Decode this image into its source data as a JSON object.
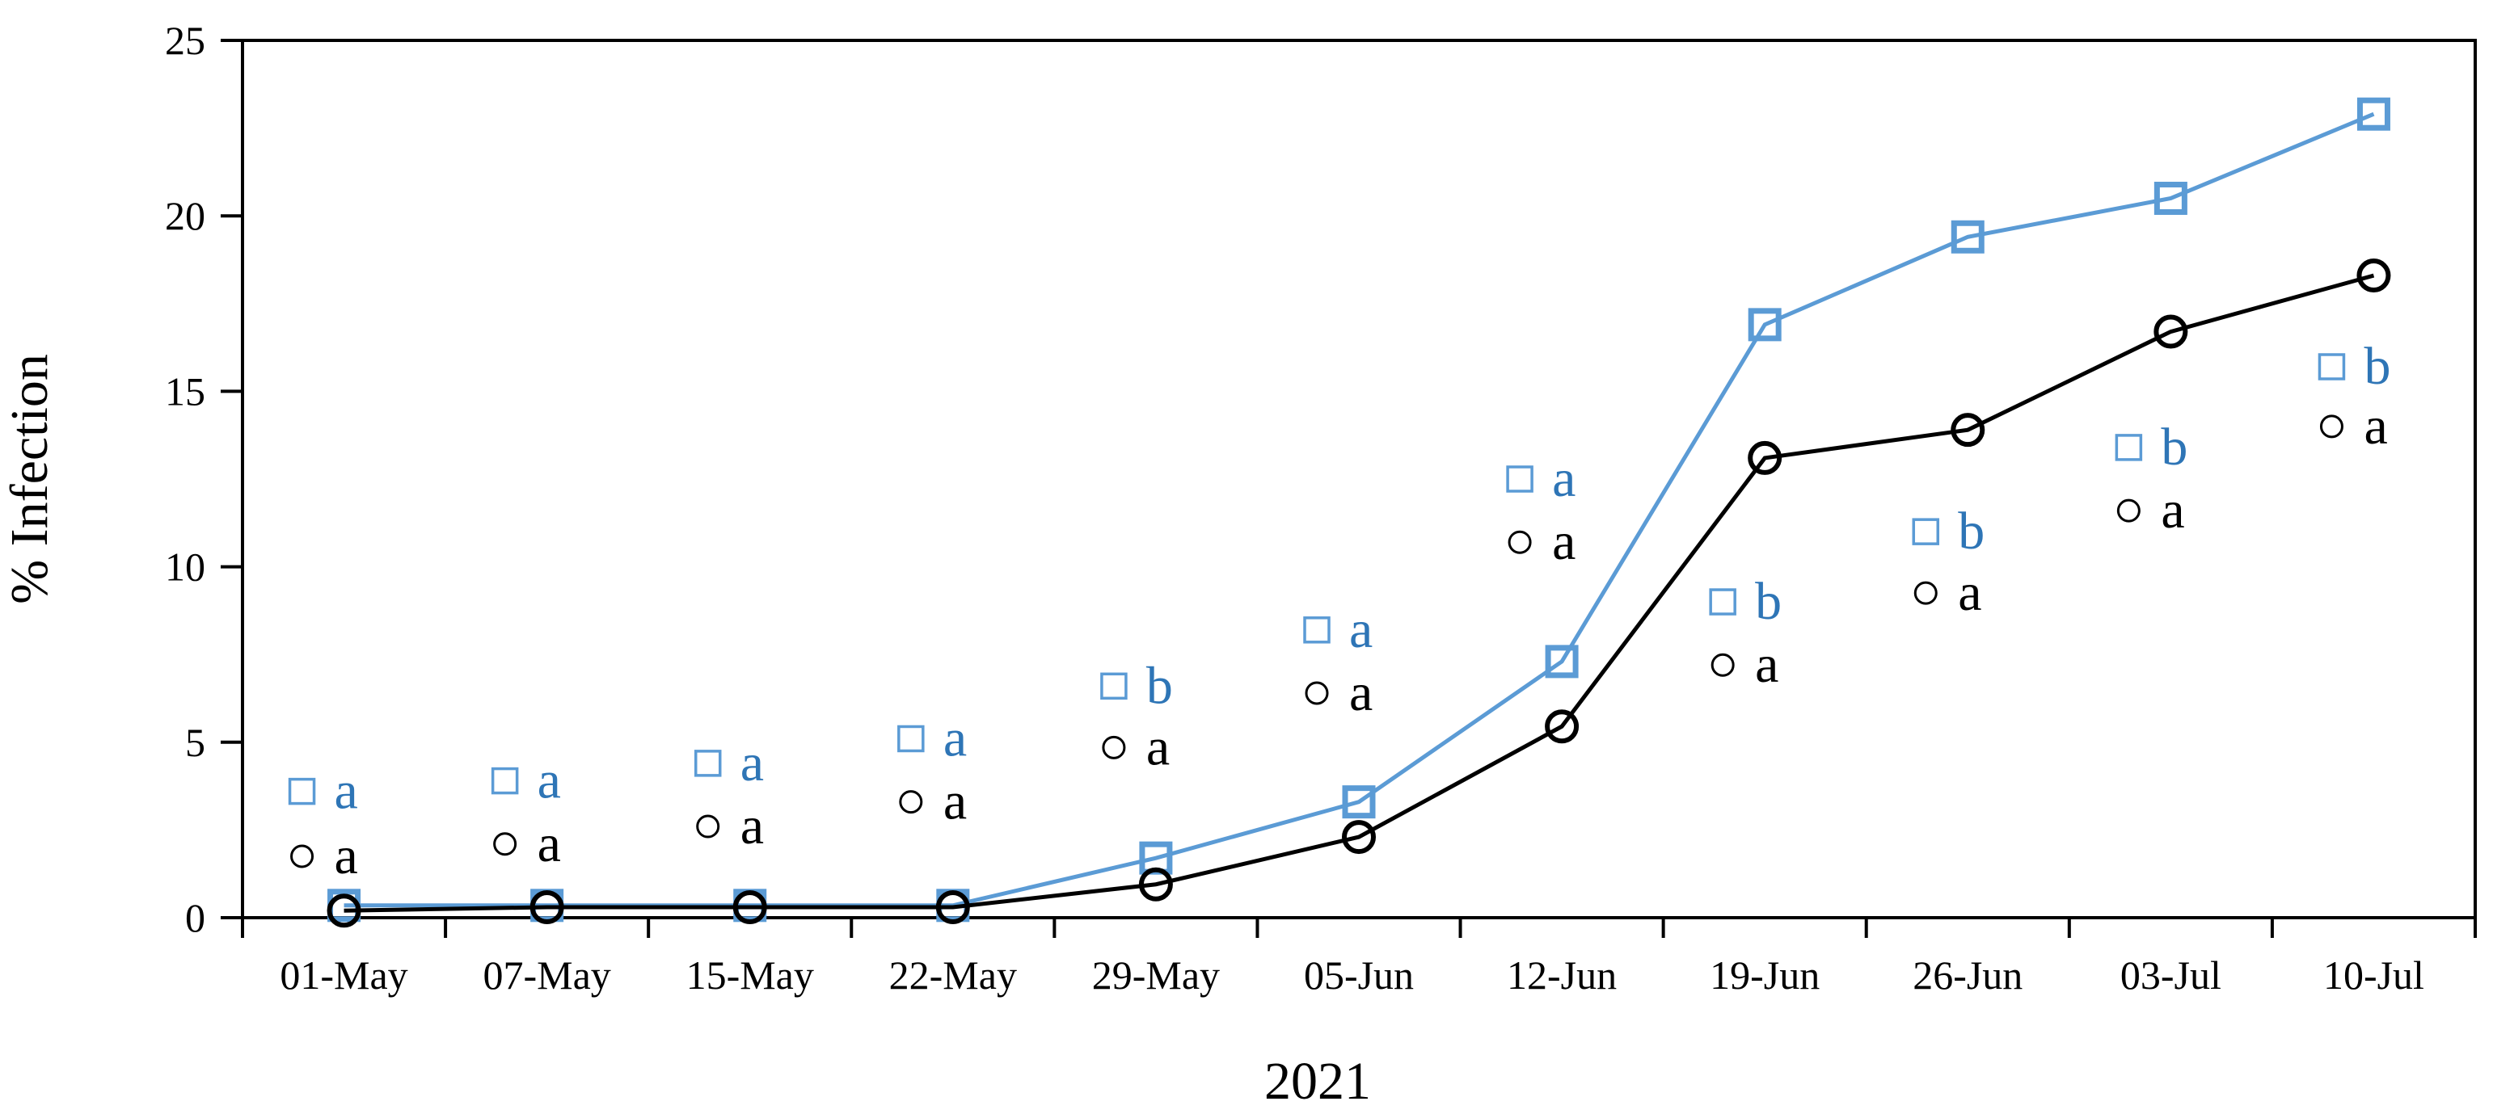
{
  "chart_data": {
    "type": "line",
    "title": "",
    "xlabel": "2021",
    "ylabel": "% Infection",
    "ylim": [
      0,
      25
    ],
    "yticks": [
      0,
      5,
      10,
      15,
      20,
      25
    ],
    "grid": false,
    "legend": false,
    "categories": [
      "01-May",
      "07-May",
      "15-May",
      "22-May",
      "29-May",
      "05-Jun",
      "12-Jun",
      "19-Jun",
      "26-Jun",
      "03-Jul",
      "10-Jul"
    ],
    "series": [
      {
        "name": "blue square series",
        "marker": "square",
        "color": "#5b9bd5",
        "values": [
          0.35,
          0.35,
          0.35,
          0.35,
          1.7,
          3.3,
          7.3,
          16.9,
          19.4,
          20.5,
          22.9
        ]
      },
      {
        "name": "black circle series",
        "marker": "circle",
        "color": "#000000",
        "values": [
          0.2,
          0.3,
          0.3,
          0.3,
          0.95,
          2.3,
          5.45,
          13.1,
          13.9,
          16.7,
          18.3
        ]
      }
    ],
    "annotations": {
      "letter_color_blue": "#2e75b6",
      "letter_color_black": "#000000",
      "items": [
        {
          "category": "01-May",
          "square": {
            "letter": "a",
            "y": 3.6
          },
          "circle": {
            "letter": "a",
            "y": 1.75
          }
        },
        {
          "category": "07-May",
          "square": {
            "letter": "a",
            "y": 3.9
          },
          "circle": {
            "letter": "a",
            "y": 2.1
          }
        },
        {
          "category": "15-May",
          "square": {
            "letter": "a",
            "y": 4.4
          },
          "circle": {
            "letter": "a",
            "y": 2.6
          }
        },
        {
          "category": "22-May",
          "square": {
            "letter": "a",
            "y": 5.1
          },
          "circle": {
            "letter": "a",
            "y": 3.3
          }
        },
        {
          "category": "29-May",
          "square": {
            "letter": "b",
            "y": 6.6
          },
          "circle": {
            "letter": "a",
            "y": 4.85
          }
        },
        {
          "category": "05-Jun",
          "square": {
            "letter": "a",
            "y": 8.2
          },
          "circle": {
            "letter": "a",
            "y": 6.4
          }
        },
        {
          "category": "12-Jun",
          "square": {
            "letter": "a",
            "y": 12.5
          },
          "circle": {
            "letter": "a",
            "y": 10.7
          }
        },
        {
          "category": "19-Jun",
          "square": {
            "letter": "b",
            "y": 9.0
          },
          "circle": {
            "letter": "a",
            "y": 7.2
          }
        },
        {
          "category": "26-Jun",
          "square": {
            "letter": "b",
            "y": 11.0
          },
          "circle": {
            "letter": "a",
            "y": 9.25
          }
        },
        {
          "category": "03-Jul",
          "square": {
            "letter": "b",
            "y": 13.4
          },
          "circle": {
            "letter": "a",
            "y": 11.6
          }
        },
        {
          "category": "10-Jul",
          "square": {
            "letter": "b",
            "y": 15.7
          },
          "circle": {
            "letter": "a",
            "y": 14.0
          }
        }
      ]
    }
  }
}
